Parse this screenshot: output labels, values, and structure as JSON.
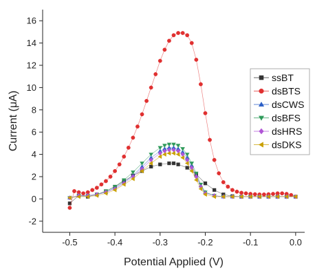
{
  "chart_data": {
    "type": "scatter",
    "xlabel": "Potential Applied (V)",
    "ylabel": "Current (μA)",
    "xlim": [
      -0.56,
      0.02
    ],
    "ylim": [
      -3,
      17
    ],
    "xticks": [
      -0.5,
      -0.4,
      -0.3,
      -0.2,
      -0.1,
      0.0
    ],
    "xtick_labels": [
      "-0.5",
      "-0.4",
      "-0.3",
      "-0.2",
      "-0.1",
      "0.0"
    ],
    "yticks": [
      -2,
      0,
      2,
      4,
      6,
      8,
      10,
      12,
      14,
      16
    ],
    "ytick_labels": [
      "-2",
      "0",
      "2",
      "4",
      "6",
      "8",
      "10",
      "12",
      "14",
      "16"
    ],
    "grid": false,
    "legend_position": "right",
    "series": [
      {
        "name": "ssBT",
        "color": "#333333",
        "marker": "square",
        "x": [
          -0.5,
          -0.48,
          -0.46,
          -0.44,
          -0.42,
          -0.4,
          -0.38,
          -0.36,
          -0.34,
          -0.32,
          -0.3,
          -0.28,
          -0.27,
          -0.26,
          -0.24,
          -0.22,
          -0.2,
          -0.18,
          -0.16,
          -0.14,
          -0.12,
          -0.1,
          -0.08,
          -0.06,
          -0.04,
          -0.02,
          0.0
        ],
        "y": [
          -0.4,
          0.3,
          0.2,
          0.4,
          0.7,
          1.1,
          1.6,
          2.1,
          2.5,
          2.9,
          3.1,
          3.2,
          3.2,
          3.1,
          2.8,
          2.2,
          1.4,
          0.8,
          0.4,
          0.25,
          0.2,
          0.2,
          0.2,
          0.2,
          0.2,
          0.2,
          0.2
        ]
      },
      {
        "name": "dsBTS",
        "color": "#e03030",
        "marker": "circle",
        "x": [
          -0.5,
          -0.49,
          -0.48,
          -0.47,
          -0.46,
          -0.45,
          -0.44,
          -0.43,
          -0.42,
          -0.41,
          -0.4,
          -0.39,
          -0.38,
          -0.37,
          -0.36,
          -0.35,
          -0.34,
          -0.33,
          -0.32,
          -0.31,
          -0.3,
          -0.29,
          -0.28,
          -0.27,
          -0.26,
          -0.25,
          -0.24,
          -0.23,
          -0.22,
          -0.21,
          -0.2,
          -0.19,
          -0.18,
          -0.17,
          -0.16,
          -0.15,
          -0.14,
          -0.13,
          -0.12,
          -0.11,
          -0.1,
          -0.09,
          -0.08,
          -0.07,
          -0.06,
          -0.05,
          -0.04,
          -0.03,
          -0.02,
          -0.01,
          0.0
        ],
        "y": [
          -0.8,
          0.7,
          0.6,
          0.5,
          0.6,
          0.8,
          1.0,
          1.3,
          1.6,
          2.0,
          2.5,
          3.1,
          3.8,
          4.6,
          5.5,
          6.5,
          7.6,
          8.8,
          10.0,
          11.2,
          12.4,
          13.4,
          14.2,
          14.7,
          14.9,
          14.9,
          14.7,
          14.0,
          12.5,
          10.3,
          7.7,
          5.3,
          3.5,
          2.3,
          1.5,
          1.1,
          0.8,
          0.65,
          0.55,
          0.5,
          0.45,
          0.42,
          0.4,
          0.4,
          0.42,
          0.45,
          0.5,
          0.5,
          0.45,
          0.35,
          0.2
        ]
      },
      {
        "name": "dsCWS",
        "color": "#2b5fc7",
        "marker": "triangle-up",
        "x": [
          -0.5,
          -0.48,
          -0.46,
          -0.44,
          -0.42,
          -0.4,
          -0.38,
          -0.36,
          -0.34,
          -0.32,
          -0.3,
          -0.29,
          -0.28,
          -0.27,
          -0.26,
          -0.25,
          -0.24,
          -0.23,
          -0.22,
          -0.21,
          -0.2,
          -0.18,
          -0.16,
          -0.14,
          -0.12,
          -0.1,
          -0.08,
          -0.06,
          -0.04,
          -0.02,
          0.0
        ],
        "y": [
          0.1,
          0.3,
          0.3,
          0.4,
          0.6,
          1.0,
          1.5,
          2.1,
          2.9,
          3.7,
          4.3,
          4.5,
          4.6,
          4.6,
          4.5,
          4.2,
          3.7,
          3.0,
          2.1,
          1.2,
          0.6,
          0.3,
          0.2,
          0.2,
          0.2,
          0.2,
          0.2,
          0.2,
          0.2,
          0.2,
          0.2
        ]
      },
      {
        "name": "dsBFS",
        "color": "#2e9a5a",
        "marker": "triangle-down",
        "x": [
          -0.5,
          -0.48,
          -0.46,
          -0.44,
          -0.42,
          -0.4,
          -0.38,
          -0.36,
          -0.34,
          -0.32,
          -0.3,
          -0.29,
          -0.28,
          -0.27,
          -0.26,
          -0.25,
          -0.24,
          -0.23,
          -0.22,
          -0.21,
          -0.2,
          -0.18,
          -0.16,
          -0.14,
          -0.12,
          -0.1,
          -0.08,
          -0.06,
          -0.04,
          -0.02,
          0.0
        ],
        "y": [
          0.1,
          0.3,
          0.3,
          0.4,
          0.7,
          1.1,
          1.7,
          2.4,
          3.2,
          4.0,
          4.6,
          4.8,
          4.9,
          4.9,
          4.8,
          4.5,
          4.0,
          3.2,
          2.3,
          1.3,
          0.6,
          0.3,
          0.2,
          0.2,
          0.2,
          0.2,
          0.2,
          0.2,
          0.2,
          0.2,
          0.2
        ]
      },
      {
        "name": "dsHRS",
        "color": "#b055d6",
        "marker": "diamond",
        "x": [
          -0.5,
          -0.48,
          -0.46,
          -0.44,
          -0.42,
          -0.4,
          -0.38,
          -0.36,
          -0.34,
          -0.32,
          -0.3,
          -0.29,
          -0.28,
          -0.27,
          -0.26,
          -0.25,
          -0.24,
          -0.23,
          -0.22,
          -0.21,
          -0.2,
          -0.18,
          -0.16,
          -0.14,
          -0.12,
          -0.1,
          -0.08,
          -0.06,
          -0.04,
          -0.02,
          0.0
        ],
        "y": [
          0.1,
          0.3,
          0.3,
          0.4,
          0.6,
          0.9,
          1.4,
          2.0,
          2.7,
          3.5,
          4.1,
          4.3,
          4.4,
          4.4,
          4.3,
          4.0,
          3.5,
          2.8,
          2.0,
          1.1,
          0.5,
          0.3,
          0.2,
          0.2,
          0.2,
          0.2,
          0.2,
          0.2,
          0.2,
          0.2,
          0.2
        ]
      },
      {
        "name": "dsDKS",
        "color": "#c9a000",
        "marker": "triangle-left",
        "x": [
          -0.5,
          -0.48,
          -0.46,
          -0.44,
          -0.42,
          -0.4,
          -0.38,
          -0.36,
          -0.34,
          -0.32,
          -0.3,
          -0.29,
          -0.28,
          -0.27,
          -0.26,
          -0.25,
          -0.24,
          -0.23,
          -0.22,
          -0.21,
          -0.2,
          -0.18,
          -0.16,
          -0.14,
          -0.12,
          -0.1,
          -0.08,
          -0.06,
          -0.04,
          -0.02,
          0.0
        ],
        "y": [
          0.1,
          0.2,
          0.2,
          0.3,
          0.5,
          0.8,
          1.3,
          1.8,
          2.5,
          3.2,
          3.8,
          4.0,
          4.1,
          4.1,
          4.0,
          3.7,
          3.2,
          2.5,
          1.7,
          0.9,
          0.4,
          0.2,
          0.2,
          0.2,
          0.2,
          0.2,
          0.2,
          0.2,
          0.2,
          0.2,
          0.2
        ]
      }
    ]
  }
}
